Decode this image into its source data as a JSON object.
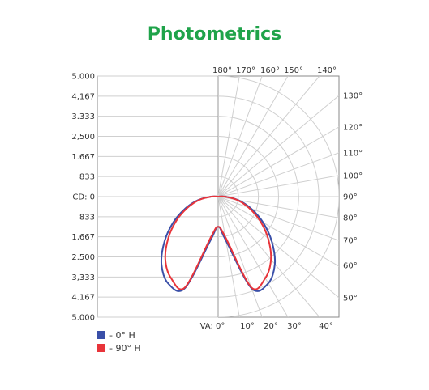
{
  "title": "Photometrics",
  "chart_data": {
    "type": "polar",
    "title": "Photometrics",
    "cd_ticks_upper": [
      "5.000",
      "4,167",
      "3.333",
      "2,500",
      "1.667",
      "833"
    ],
    "cd_center_label": "CD: 0",
    "cd_ticks_lower": [
      "833",
      "1,667",
      "2.500",
      "3,333",
      "4.167",
      "5.000"
    ],
    "cd_max": 5000,
    "top_angle_labels": [
      "180°",
      "170°",
      "160°",
      "150°",
      "140°"
    ],
    "right_angle_labels": [
      "130°",
      "120°",
      "110°",
      "100°",
      "90°",
      "80°",
      "70°",
      "60°",
      "50°"
    ],
    "bottom_angle_labels": [
      "VA: 0°",
      "10°",
      "20°",
      "30°",
      "40°"
    ],
    "grid": true,
    "legend_position": "bottom-left",
    "series": [
      {
        "name": "- 0° H",
        "color": "#3a4fa8",
        "points": [
          [
            0,
            1250
          ],
          [
            10,
            1850
          ],
          [
            20,
            4050
          ],
          [
            30,
            4150
          ],
          [
            40,
            3650
          ],
          [
            50,
            2900
          ],
          [
            60,
            2150
          ],
          [
            70,
            1450
          ],
          [
            80,
            850
          ],
          [
            90,
            300
          ],
          [
            100,
            5
          ],
          [
            180,
            0
          ]
        ]
      },
      {
        "name": "- 90° H",
        "color": "#e8343a",
        "points": [
          [
            0,
            1250
          ],
          [
            10,
            1700
          ],
          [
            20,
            4000
          ],
          [
            30,
            3900
          ],
          [
            40,
            3400
          ],
          [
            50,
            2700
          ],
          [
            60,
            2000
          ],
          [
            70,
            1350
          ],
          [
            80,
            800
          ],
          [
            90,
            280
          ],
          [
            100,
            5
          ],
          [
            180,
            0
          ]
        ]
      }
    ]
  }
}
